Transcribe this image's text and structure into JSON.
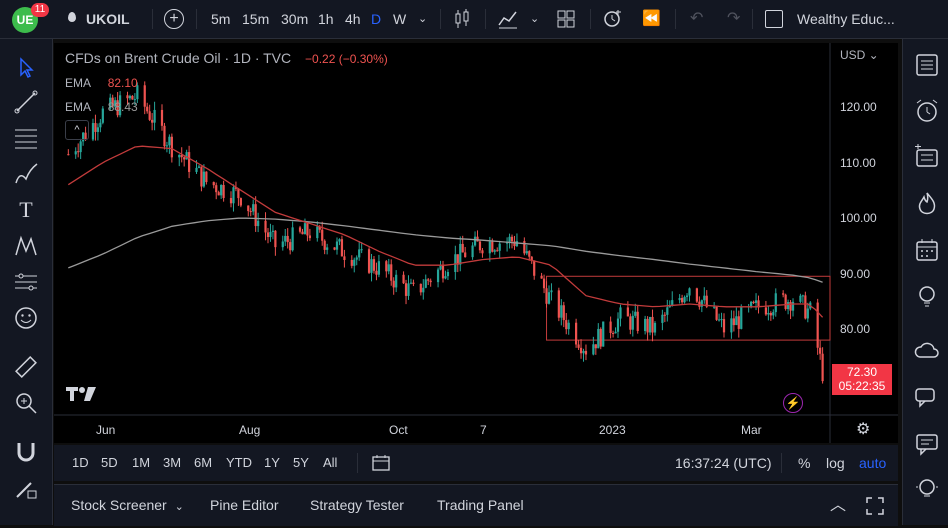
{
  "topbar": {
    "notification_count": "11",
    "symbol": "UKOIL",
    "intervals": [
      "5m",
      "15m",
      "30m",
      "1h",
      "4h",
      "D",
      "W"
    ],
    "active_interval": "D",
    "layout_name": "Wealthy Educ..."
  },
  "legend": {
    "title": "CFDs on Brent Crude Oil · 1D · TVC",
    "change": "−0.22 (−0.30%)",
    "ema1_label": "EMA",
    "ema1_value": "82.10",
    "ema2_label": "EMA",
    "ema2_value": "88.43"
  },
  "price_axis": {
    "currency": "USD",
    "ticks": [
      "120.00",
      "110.00",
      "100.00",
      "90.00",
      "80.00"
    ],
    "last_price": "72.30",
    "countdown": "05:22:35"
  },
  "time_axis": {
    "ticks": [
      "Jun",
      "Aug",
      "Oct",
      "7",
      "2023",
      "Mar"
    ]
  },
  "range_bar": {
    "ranges": [
      "1D",
      "5D",
      "1M",
      "3M",
      "6M",
      "YTD",
      "1Y",
      "5Y",
      "All"
    ],
    "clock": "16:37:24 (UTC)",
    "percent": "%",
    "log": "log",
    "auto": "auto"
  },
  "bottom_panel": {
    "tabs": [
      "Stock Screener",
      "Pine Editor",
      "Strategy Tester",
      "Trading Panel"
    ]
  },
  "colors": {
    "up": "#26a69a",
    "down": "#ef5350",
    "ema_fast": "#c23b3b",
    "ema_slow": "#9a9a9a",
    "last_price_bg": "#f23645",
    "accent": "#2962ff"
  },
  "chart_data": {
    "type": "candlestick",
    "timeframe": "1D",
    "ylim": [
      66,
      130
    ],
    "x": [
      "2022-05-13",
      "2022-05-27",
      "2022-06-10",
      "2022-06-24",
      "2022-07-08",
      "2022-07-22",
      "2022-08-05",
      "2022-08-19",
      "2022-09-02",
      "2022-09-16",
      "2022-09-30",
      "2022-10-14",
      "2022-10-28",
      "2022-11-11",
      "2022-11-25",
      "2022-12-09",
      "2022-12-23",
      "2023-01-06",
      "2023-01-20",
      "2023-02-03",
      "2023-02-17",
      "2023-03-03",
      "2023-03-10",
      "2023-03-15"
    ],
    "close": [
      111.5,
      119.0,
      122.0,
      113.0,
      106.5,
      104.0,
      95.0,
      97.5,
      94.0,
      91.0,
      86.5,
      92.0,
      95.5,
      96.0,
      85.0,
      76.5,
      82.0,
      80.0,
      88.0,
      80.0,
      84.0,
      85.5,
      83.0,
      72.3
    ],
    "ema_fast": [
      106.0,
      110.0,
      113.0,
      112.5,
      109.0,
      105.0,
      101.0,
      99.0,
      97.0,
      94.0,
      91.5,
      91.5,
      92.5,
      93.0,
      91.5,
      86.0,
      84.5,
      84.0,
      84.5,
      84.0,
      84.0,
      84.5,
      84.5,
      82.1
    ],
    "ema_slow": [
      91.0,
      93.5,
      96.5,
      98.5,
      99.5,
      100.0,
      99.8,
      99.3,
      98.6,
      97.8,
      97.0,
      96.4,
      96.0,
      95.5,
      95.0,
      94.0,
      93.2,
      92.5,
      91.7,
      91.0,
      90.3,
      89.7,
      89.2,
      88.43
    ],
    "range_box": {
      "high": 89.5,
      "low": 78.0,
      "start": "2022-11-23",
      "end": "2023-03-15"
    }
  }
}
